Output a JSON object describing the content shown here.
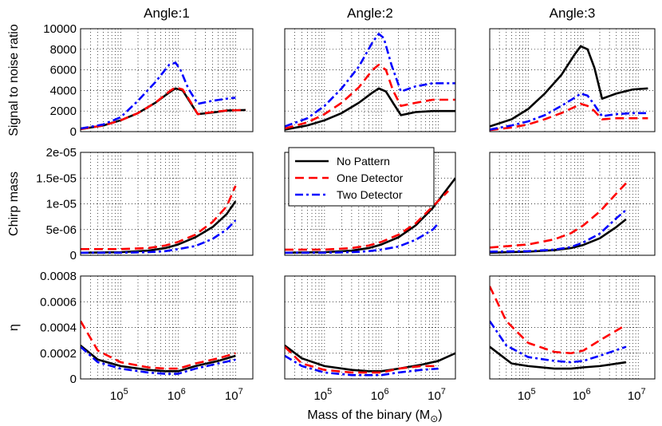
{
  "chart_data": {
    "type": "line",
    "title": "",
    "column_titles": [
      "Angle:1",
      "Angle:2",
      "Angle:3"
    ],
    "xlabel": "Mass of the binary (M",
    "xlabel_sub": "⊙",
    "xlabel_close": ")",
    "x_scale": "log",
    "xlim": [
      20000,
      20000000
    ],
    "x_ticks": [
      {
        "value": 100000,
        "base": "10",
        "exp": "5"
      },
      {
        "value": 1000000,
        "base": "10",
        "exp": "6"
      },
      {
        "value": 10000000,
        "base": "10",
        "exp": "7"
      }
    ],
    "grid": true,
    "legend": {
      "placement": "middle row, center panel, top-left",
      "entries": [
        "No Pattern",
        "One Detector",
        "Two Detector"
      ]
    },
    "series_styles": [
      {
        "name": "No Pattern",
        "color": "#000000",
        "dash": "solid"
      },
      {
        "name": "One Detector",
        "color": "#ff0000",
        "dash": "dashed"
      },
      {
        "name": "Two Detector",
        "color": "#0000ff",
        "dash": "dash-dot"
      }
    ],
    "rows": [
      {
        "ylabel": "Signal to noise ratio",
        "ylim": [
          0,
          10000
        ],
        "y_ticks": [
          0,
          2000,
          4000,
          6000,
          8000,
          10000
        ],
        "y_tick_labels": [
          "0",
          "2000",
          "4000",
          "6000",
          "8000",
          "10000"
        ]
      },
      {
        "ylabel": "Chirp mass",
        "ylim": [
          0,
          2e-05
        ],
        "y_ticks": [
          0,
          5e-06,
          1e-05,
          1.5e-05,
          2e-05
        ],
        "y_tick_labels": [
          "0",
          "5e-06",
          "1e-05",
          "1.5e-05",
          "2e-05"
        ]
      },
      {
        "ylabel": "η",
        "ylim": [
          0,
          0.0008
        ],
        "y_ticks": [
          0,
          0.0002,
          0.0004,
          0.0006,
          0.0008
        ],
        "y_tick_labels": [
          "0",
          "0.0002",
          "0.0004",
          "0.0006",
          "0.0008"
        ]
      }
    ],
    "panels": [
      {
        "row": 0,
        "col": 0,
        "series": [
          {
            "name": "No Pattern",
            "x": [
              20000,
              50000,
              100000,
              200000,
              400000,
              700000,
              900000,
              1200000,
              1600000,
              2200000,
              4000000,
              7000000,
              15000000
            ],
            "y": [
              250,
              600,
              1100,
              1800,
              2800,
              3800,
              4200,
              4000,
              2900,
              1700,
              1850,
              2050,
              2100
            ]
          },
          {
            "name": "One Detector",
            "x": [
              20000,
              50000,
              100000,
              200000,
              400000,
              700000,
              900000,
              1200000,
              1600000,
              2200000,
              4000000,
              7000000,
              15000000
            ],
            "y": [
              250,
              600,
              1100,
              1800,
              2800,
              3900,
              4300,
              4100,
              3000,
              1700,
              1900,
              2050,
              2100
            ]
          },
          {
            "name": "Two Detector",
            "x": [
              20000,
              50000,
              100000,
              200000,
              400000,
              700000,
              900000,
              1100000,
              1500000,
              2200000,
              4000000,
              7000000,
              10000000
            ],
            "y": [
              300,
              700,
              1400,
              3000,
              4800,
              6500,
              6700,
              6000,
              4200,
              2700,
              3000,
              3200,
              3300
            ]
          }
        ]
      },
      {
        "row": 0,
        "col": 1,
        "series": [
          {
            "name": "No Pattern",
            "x": [
              20000,
              50000,
              100000,
              200000,
              400000,
              700000,
              900000,
              1200000,
              1600000,
              2200000,
              4000000,
              8000000,
              20000000
            ],
            "y": [
              200,
              600,
              1100,
              1800,
              2800,
              3800,
              4200,
              3900,
              2800,
              1600,
              1900,
              2000,
              2000
            ]
          },
          {
            "name": "One Detector",
            "x": [
              20000,
              50000,
              100000,
              200000,
              400000,
              700000,
              900000,
              1200000,
              1600000,
              2200000,
              4000000,
              8000000,
              20000000
            ],
            "y": [
              300,
              900,
              1700,
              2800,
              4300,
              6000,
              6500,
              6000,
              4000,
              2500,
              2800,
              3100,
              3100
            ]
          },
          {
            "name": "Two Detector",
            "x": [
              20000,
              50000,
              100000,
              200000,
              400000,
              700000,
              900000,
              1100000,
              1500000,
              2200000,
              4000000,
              8000000,
              20000000
            ],
            "y": [
              500,
              1300,
              2500,
              4200,
              6300,
              8700,
              9500,
              9100,
              6500,
              3900,
              4400,
              4700,
              4700
            ]
          }
        ]
      },
      {
        "row": 0,
        "col": 2,
        "series": [
          {
            "name": "No Pattern",
            "x": [
              20000,
              50000,
              100000,
              200000,
              400000,
              700000,
              900000,
              1200000,
              1600000,
              2200000,
              4000000,
              8000000,
              15000000
            ],
            "y": [
              500,
              1200,
              2200,
              3700,
              5500,
              7500,
              8300,
              8000,
              6200,
              3200,
              3700,
              4100,
              4200
            ]
          },
          {
            "name": "One Detector",
            "x": [
              20000,
              50000,
              100000,
              200000,
              400000,
              700000,
              900000,
              1200000,
              1600000,
              2200000,
              4000000,
              8000000,
              15000000
            ],
            "y": [
              150,
              400,
              700,
              1200,
              1800,
              2400,
              2700,
              2500,
              2000,
              1200,
              1300,
              1300,
              1300
            ]
          },
          {
            "name": "Two Detector",
            "x": [
              20000,
              50000,
              100000,
              200000,
              400000,
              700000,
              900000,
              1200000,
              1600000,
              2200000,
              4000000,
              8000000,
              15000000
            ],
            "y": [
              200,
              600,
              1000,
              1600,
              2500,
              3300,
              3700,
              3500,
              2600,
              1500,
              1700,
              1800,
              1800
            ]
          }
        ]
      },
      {
        "row": 1,
        "col": 0,
        "series": [
          {
            "name": "No Pattern",
            "x": [
              20000,
              100000,
              300000,
              600000,
              1000000,
              2000000,
              4000000,
              7000000,
              10000000
            ],
            "y": [
              5e-07,
              6e-07,
              9e-07,
              1.4e-06,
              2.1e-06,
              3.5e-06,
              5.5e-06,
              8e-06,
              1.05e-05
            ]
          },
          {
            "name": "One Detector",
            "x": [
              20000,
              100000,
              300000,
              600000,
              1000000,
              2000000,
              4000000,
              7000000,
              10000000
            ],
            "y": [
              1.2e-06,
              1.2e-06,
              1.4e-06,
              1.9e-06,
              2.6e-06,
              4e-06,
              6.5e-06,
              9.5e-06,
              1.35e-05
            ]
          },
          {
            "name": "Two Detector",
            "x": [
              20000,
              100000,
              300000,
              600000,
              1000000,
              2000000,
              4000000,
              7000000,
              10000000
            ],
            "y": [
              5e-07,
              5e-07,
              6e-07,
              8e-07,
              1.2e-06,
              1.8e-06,
              3.2e-06,
              5e-06,
              6.8e-06
            ]
          }
        ]
      },
      {
        "row": 1,
        "col": 1,
        "series": [
          {
            "name": "No Pattern",
            "x": [
              20000,
              100000,
              300000,
              600000,
              1000000,
              2000000,
              4000000,
              8000000,
              20000000
            ],
            "y": [
              5e-07,
              6e-07,
              9e-07,
              1.4e-06,
              2.1e-06,
              3.5e-06,
              5.8e-06,
              9.2e-06,
              1.5e-05
            ]
          },
          {
            "name": "One Detector",
            "x": [
              20000,
              100000,
              300000,
              600000,
              1000000,
              2000000,
              4000000,
              8000000,
              15000000
            ],
            "y": [
              1.1e-06,
              1.1e-06,
              1.4e-06,
              1.9e-06,
              2.6e-06,
              4e-06,
              6.2e-06,
              9.5e-06,
              1.25e-05
            ]
          },
          {
            "name": "Two Detector",
            "x": [
              20000,
              100000,
              300000,
              600000,
              1000000,
              2000000,
              4000000,
              8000000,
              10000000
            ],
            "y": [
              5e-07,
              5e-07,
              6e-07,
              8e-07,
              1.1e-06,
              1.7e-06,
              3e-06,
              5e-06,
              6.2e-06
            ]
          }
        ]
      },
      {
        "row": 1,
        "col": 2,
        "series": [
          {
            "name": "No Pattern",
            "x": [
              20000,
              100000,
              300000,
              600000,
              1000000,
              2000000,
              4000000,
              6000000
            ],
            "y": [
              5e-07,
              7e-07,
              1e-06,
              1.4e-06,
              2e-06,
              3.3e-06,
              5.5e-06,
              7e-06
            ]
          },
          {
            "name": "One Detector",
            "x": [
              20000,
              100000,
              300000,
              600000,
              1000000,
              2000000,
              4000000,
              6000000
            ],
            "y": [
              1.5e-06,
              2.1e-06,
              3.1e-06,
              4.3e-06,
              5.8e-06,
              8.5e-06,
              1.2e-05,
              1.4e-05
            ]
          },
          {
            "name": "Two Detector",
            "x": [
              20000,
              100000,
              300000,
              600000,
              1000000,
              2000000,
              4000000,
              6000000
            ],
            "y": [
              7e-07,
              8e-07,
              1.1e-06,
              1.6e-06,
              2.5e-06,
              4.2e-06,
              7.2e-06,
              8.8e-06
            ]
          }
        ]
      },
      {
        "row": 2,
        "col": 0,
        "series": [
          {
            "name": "No Pattern",
            "x": [
              20000,
              40000,
              100000,
              300000,
              600000,
              1000000,
              2000000,
              5000000,
              10000000
            ],
            "y": [
              0.00026,
              0.00015,
              0.0001,
              7e-05,
              6e-05,
              6e-05,
              0.0001,
              0.00014,
              0.00018
            ]
          },
          {
            "name": "One Detector",
            "x": [
              20000,
              40000,
              100000,
              300000,
              600000,
              1000000,
              2000000,
              5000000,
              10000000
            ],
            "y": [
              0.00045,
              0.00022,
              0.00013,
              9e-05,
              8e-05,
              8e-05,
              0.00012,
              0.00016,
              0.0002
            ]
          },
          {
            "name": "Two Detector",
            "x": [
              20000,
              40000,
              100000,
              300000,
              600000,
              1000000,
              2000000,
              5000000,
              10000000
            ],
            "y": [
              0.00025,
              0.00013,
              8e-05,
              5e-05,
              4e-05,
              4e-05,
              8e-05,
              0.00012,
              0.00015
            ]
          }
        ]
      },
      {
        "row": 2,
        "col": 1,
        "series": [
          {
            "name": "No Pattern",
            "x": [
              20000,
              40000,
              100000,
              300000,
              600000,
              1000000,
              2000000,
              5000000,
              10000000,
              20000000
            ],
            "y": [
              0.00026,
              0.00016,
              0.0001,
              7e-05,
              6e-05,
              6e-05,
              8e-05,
              0.00011,
              0.00014,
              0.0002
            ]
          },
          {
            "name": "One Detector",
            "x": [
              20000,
              40000,
              100000,
              300000,
              600000,
              1000000,
              2000000,
              5000000,
              10000000
            ],
            "y": [
              0.00025,
              0.00012,
              7e-05,
              5e-05,
              5e-05,
              5e-05,
              8e-05,
              0.0001,
              0.0001
            ]
          },
          {
            "name": "Two Detector",
            "x": [
              20000,
              40000,
              100000,
              300000,
              600000,
              1000000,
              2000000,
              5000000,
              10000000
            ],
            "y": [
              0.00018,
              0.0001,
              5e-05,
              3e-05,
              3e-05,
              3e-05,
              5e-05,
              7e-05,
              8e-05
            ]
          }
        ]
      },
      {
        "row": 2,
        "col": 2,
        "series": [
          {
            "name": "No Pattern",
            "x": [
              20000,
              50000,
              100000,
              300000,
              600000,
              1000000,
              2000000,
              6000000
            ],
            "y": [
              0.00025,
              0.00012,
              0.0001,
              8e-05,
              8e-05,
              9e-05,
              0.0001,
              0.00013
            ]
          },
          {
            "name": "One Detector",
            "x": [
              20000,
              40000,
              100000,
              300000,
              600000,
              1000000,
              2000000,
              6000000
            ],
            "y": [
              0.00072,
              0.00045,
              0.00028,
              0.00021,
              0.0002,
              0.00022,
              0.0003,
              0.00042
            ]
          },
          {
            "name": "Two Detector",
            "x": [
              20000,
              40000,
              100000,
              300000,
              600000,
              1000000,
              2000000,
              6000000
            ],
            "y": [
              0.00045,
              0.00026,
              0.00017,
              0.00014,
              0.00013,
              0.00014,
              0.00018,
              0.00025
            ]
          }
        ]
      }
    ]
  }
}
